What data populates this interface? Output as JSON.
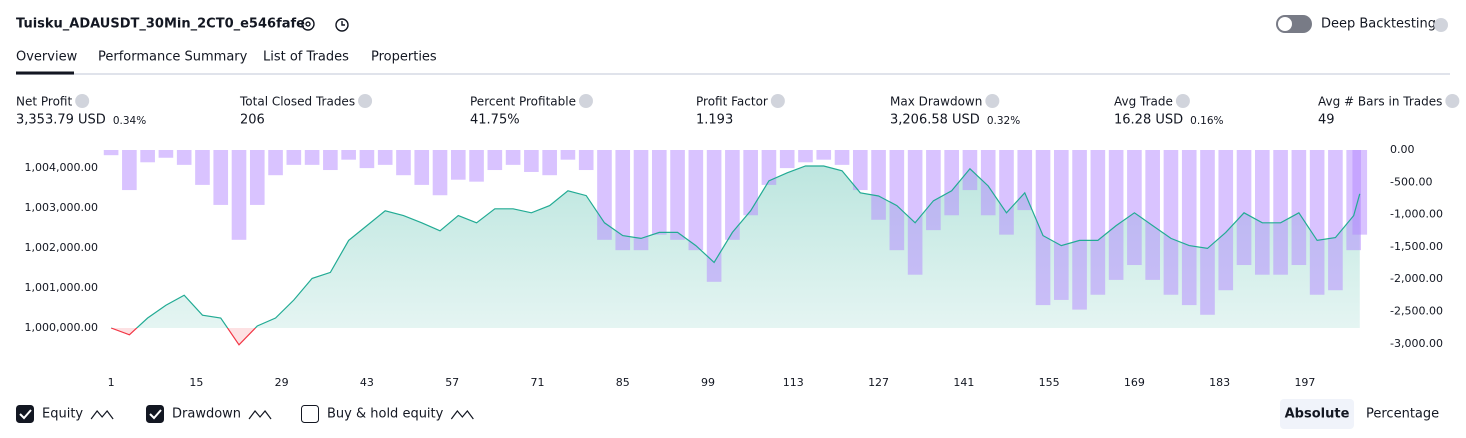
{
  "header": {
    "strategy_name": "Tuisku_ADAUSDT_30Min_2CT0_e546fafe",
    "deep_backtesting": "Deep Backtesting"
  },
  "tabs": [
    "Overview",
    "Performance Summary",
    "List of Trades",
    "Properties"
  ],
  "metrics": [
    {
      "label": "Net Profit",
      "value": "3,353.79 USD",
      "percent": "0.34%",
      "color": "#089981"
    },
    {
      "label": "Total Closed Trades",
      "value": "206",
      "color": "#131722"
    },
    {
      "label": "Percent Profitable",
      "value": "41.75%",
      "color": "#089981"
    },
    {
      "label": "Profit Factor",
      "value": "1.193",
      "color": "#089981"
    },
    {
      "label": "Max Drawdown",
      "value": "3,206.58 USD",
      "percent": "0.32%",
      "color": "#f23645"
    },
    {
      "label": "Avg Trade",
      "value": "16.28 USD",
      "percent": "0.16%",
      "color": "#089981"
    },
    {
      "label": "Avg # Bars in Trades",
      "value": "49",
      "color": "#131722"
    }
  ],
  "chart_data": {
    "type": "equity",
    "x": [
      1,
      4,
      7,
      10,
      13,
      16,
      19,
      22,
      25,
      28,
      31,
      34,
      37,
      40,
      43,
      46,
      49,
      52,
      55,
      58,
      61,
      64,
      67,
      70,
      73,
      76,
      79,
      82,
      85,
      88,
      91,
      94,
      97,
      100,
      103,
      106,
      109,
      112,
      115,
      118,
      121,
      124,
      127,
      130,
      133,
      136,
      139,
      142,
      145,
      148,
      151,
      154,
      157,
      160,
      163,
      166,
      169,
      172,
      175,
      178,
      181,
      184,
      187,
      190,
      193,
      196,
      199,
      202,
      205,
      206
    ],
    "series": [
      {
        "name": "Equity",
        "color": "#22ab94",
        "negative_color": "#f23645",
        "values": [
          1000000,
          999830,
          1000250,
          1000570,
          1000820,
          1000320,
          1000250,
          999580,
          1000050,
          1000250,
          1000700,
          1001240,
          1001390,
          1002190,
          1002560,
          1002930,
          1002810,
          1002630,
          1002430,
          1002810,
          1002630,
          1002980,
          1002980,
          1002880,
          1003060,
          1003430,
          1003310,
          1002630,
          1002310,
          1002240,
          1002390,
          1002390,
          1002060,
          1001640,
          1002390,
          1002930,
          1003680,
          1003880,
          1004050,
          1004050,
          1003930,
          1003380,
          1003300,
          1003060,
          1002630,
          1003180,
          1003430,
          1003980,
          1003550,
          1002880,
          1003380,
          1002310,
          1002060,
          1002190,
          1002190,
          1002560,
          1002880,
          1002560,
          1002240,
          1002060,
          1001990,
          1002390,
          1002880,
          1002630,
          1002630,
          1002880,
          1002190,
          1002260,
          1002810,
          1003354
        ]
      },
      {
        "name": "Drawdown",
        "color": "#b388ff",
        "axis": "y2",
        "values": [
          -80,
          -620,
          -190,
          -120,
          -230,
          -540,
          -850,
          -1390,
          -850,
          -390,
          -230,
          -230,
          -310,
          -150,
          -280,
          -230,
          -390,
          -540,
          -700,
          -460,
          -490,
          -310,
          -230,
          -340,
          -390,
          -150,
          -310,
          -1390,
          -1550,
          -1550,
          -1310,
          -1390,
          -1550,
          -2040,
          -1390,
          -1010,
          -540,
          -280,
          -190,
          -150,
          -230,
          -620,
          -1080,
          -1550,
          -1930,
          -1240,
          -1010,
          -620,
          -1010,
          -1310,
          -930,
          -2400,
          -2320,
          -2470,
          -2240,
          -2010,
          -1780,
          -2010,
          -2240,
          -2400,
          -2550,
          -2170,
          -1780,
          -1930,
          -1930,
          -1780,
          -2240,
          -2170,
          -1550,
          -1310
        ]
      }
    ],
    "xlim": [
      0,
      208.5
    ],
    "xticks": [
      1,
      15,
      29,
      43,
      57,
      71,
      85,
      99,
      113,
      127,
      141,
      155,
      169,
      183,
      197
    ],
    "ylim": [
      999200,
      1004450
    ],
    "yticks": [
      {
        "value": 1000000,
        "label": "1,000,000.00"
      },
      {
        "value": 1001000,
        "label": "1,001,000.00"
      },
      {
        "value": 1002000,
        "label": "1,002,000.00"
      },
      {
        "value": 1003000,
        "label": "1,003,000.00"
      },
      {
        "value": 1004000,
        "label": "1,004,000.00"
      }
    ],
    "y2lim": [
      -3250,
      0
    ],
    "y2ticks": [
      {
        "value": 0,
        "label": "0.00"
      },
      {
        "value": -500,
        "label": "-500.00"
      },
      {
        "value": -1000,
        "label": "-1,000.00"
      },
      {
        "value": -1500,
        "label": "-1,500.00"
      },
      {
        "value": -2000,
        "label": "-2,000.00"
      },
      {
        "value": -2500,
        "label": "-2,500.00"
      },
      {
        "value": -3000,
        "label": "-3,000.00"
      }
    ],
    "extra_legend": "Buy & hold equity"
  },
  "view_modes": [
    "Absolute",
    "Percentage"
  ]
}
